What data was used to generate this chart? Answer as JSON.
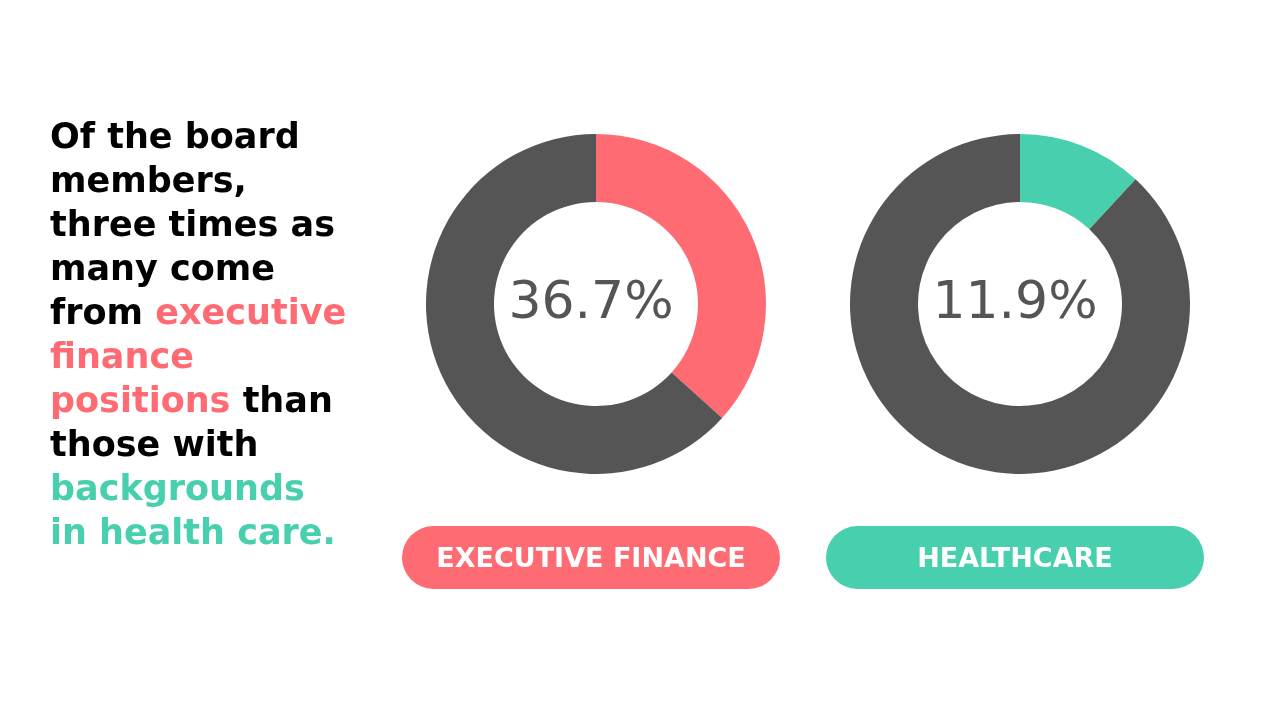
{
  "chart_data": [
    {
      "type": "other",
      "annotations": [
        "Of the board members, three times as many come from",
        "executive finance positions",
        "than those with",
        "backgrounds in health care."
      ],
      "colors": [
        "#000000",
        "#ff6b72",
        "#000000",
        "#48cfae"
      ]
    },
    {
      "type": "donut",
      "title": "EXECUTIVE FINANCE",
      "categories": [
        null,
        null
      ],
      "values": [
        36.7,
        63.3
      ],
      "colors": [
        "#ff6b72",
        "#555555"
      ],
      "annotations": [
        "36.7%"
      ]
    },
    {
      "type": "donut",
      "title": "HEALTHCARE",
      "categories": [
        null,
        null
      ],
      "values": [
        11.9,
        88.1
      ],
      "colors": [
        "#48cfae",
        "#555555"
      ],
      "annotations": [
        "11.9%"
      ]
    }
  ]
}
